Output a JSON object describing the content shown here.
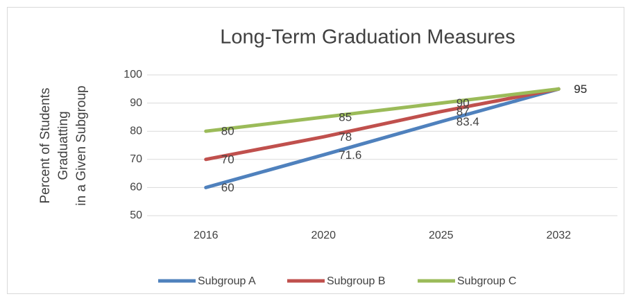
{
  "chart_data": {
    "type": "line",
    "title": "Long-Term Graduation Measures",
    "ylabel": [
      "Percent of Students",
      "Graduatting",
      "in  a Given Subgroup"
    ],
    "categories": [
      "2016",
      "2020",
      "2025",
      "2032"
    ],
    "series": [
      {
        "name": "Subgroup A",
        "color": "#4f81bd",
        "values": [
          60,
          71.6,
          83.4,
          95
        ]
      },
      {
        "name": "Subgroup B",
        "color": "#c0504d",
        "values": [
          70,
          78,
          87,
          95
        ]
      },
      {
        "name": "Subgroup C",
        "color": "#9bbb59",
        "values": [
          80,
          85,
          90,
          95
        ]
      }
    ],
    "ylim": [
      50,
      100
    ],
    "yticks": [
      50,
      60,
      70,
      80,
      90,
      100
    ],
    "grid": true,
    "legend": "bottom"
  }
}
